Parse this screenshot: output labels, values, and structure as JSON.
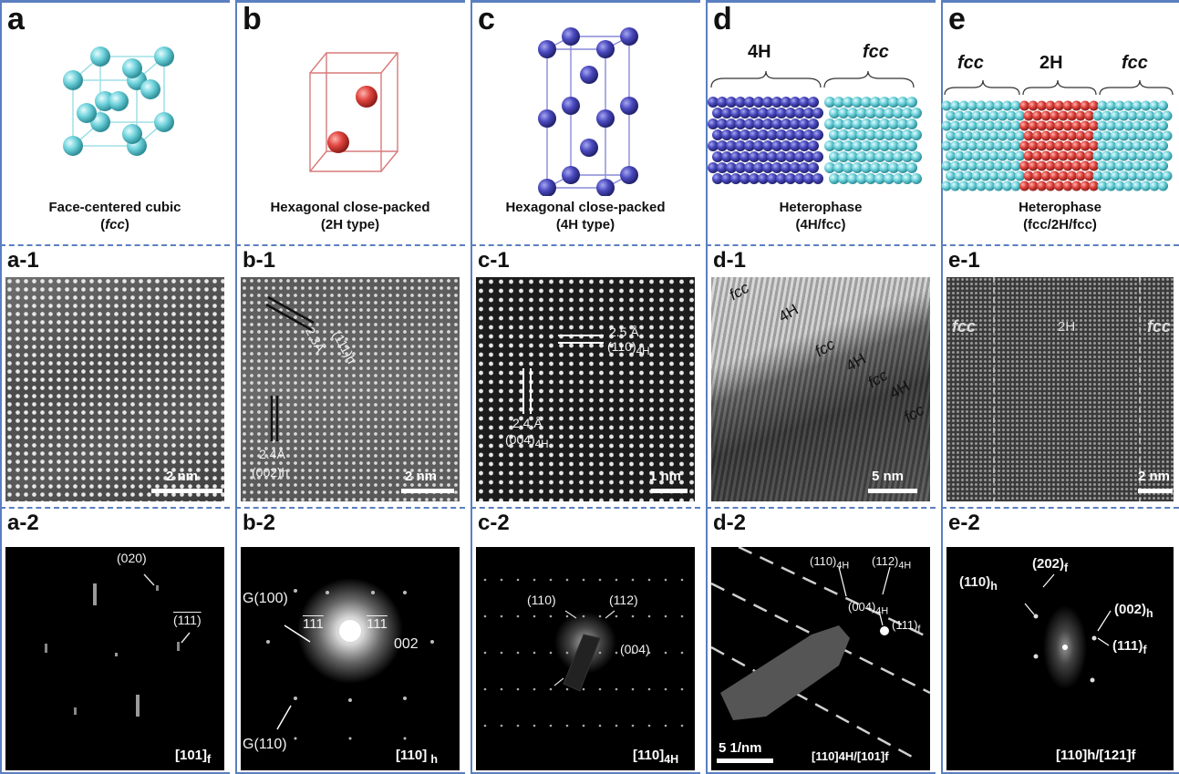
{
  "panels": {
    "a": {
      "letter": "a",
      "caption_line1": "Face-centered cubic",
      "caption_pre": "(",
      "caption_italic": "fcc",
      "caption_post": ")",
      "sub1": "a-1",
      "sub2": "a-2",
      "scale": "2 nm",
      "zone": "[101]",
      "zone_sub": "f",
      "labels": [
        "(020)",
        "(111)"
      ]
    },
    "b": {
      "letter": "b",
      "caption_line1": "Hexagonal close-packed",
      "caption_line2": "(2H type)",
      "sub1": "b-1",
      "sub2": "b-2",
      "scale": "2 nm",
      "hr_labels": [
        "2.3Å",
        "(111)h",
        "2.4Å",
        "(002)h"
      ],
      "diff_labels": [
        "G(100)",
        "111",
        "111",
        "002",
        "G(110)"
      ],
      "zone": "[110]",
      "zone_sub": "h"
    },
    "c": {
      "letter": "c",
      "caption_line1": "Hexagonal close-packed",
      "caption_line2": "(4H type)",
      "sub1": "c-1",
      "sub2": "c-2",
      "scale": "1 nm",
      "hr_labels": [
        "2.5 Å",
        "(110)",
        "2.4 Å",
        "(004)"
      ],
      "hr_sub": "4H",
      "diff_labels": [
        "(110)",
        "(112)",
        "(004)"
      ],
      "zone": "[110]",
      "zone_sub": "4H"
    },
    "d": {
      "letter": "d",
      "top_left": "4H",
      "top_right": "fcc",
      "caption_line1": "Heterophase",
      "caption_line2": "(4H/fcc)",
      "sub1": "d-1",
      "sub2": "d-2",
      "scale": "5 nm",
      "hr_labels": [
        "fcc",
        "4H",
        "fcc",
        "4H",
        "fcc",
        "4H",
        "fcc"
      ],
      "diff_labels": [
        "(110)",
        "(112)",
        "(004)",
        "(111)"
      ],
      "diff_sub_4h": "4H",
      "diff_sub_f": "f",
      "diff_scale": "5 1/nm",
      "zone": "[110]4H/[101]f"
    },
    "e": {
      "letter": "e",
      "top_labels": [
        "fcc",
        "2H",
        "fcc"
      ],
      "caption_line1": "Heterophase",
      "caption_line2": "(fcc/2H/fcc)",
      "sub1": "e-1",
      "sub2": "e-2",
      "scale": "2 nm",
      "hr_labels": [
        "fcc",
        "2H",
        "fcc"
      ],
      "diff_labels": [
        "(110)",
        "(202)",
        "(002)",
        "(111)"
      ],
      "diff_subs": [
        "h",
        "f",
        "h",
        "f"
      ],
      "zone": "[110]h/[121]f"
    }
  },
  "colors": {
    "border": "#5b7fc0",
    "fcc_atom": "#6fd3dc",
    "hcp2h_atom": "#e0453f",
    "hcp4h_atom": "#4a4ac0"
  }
}
